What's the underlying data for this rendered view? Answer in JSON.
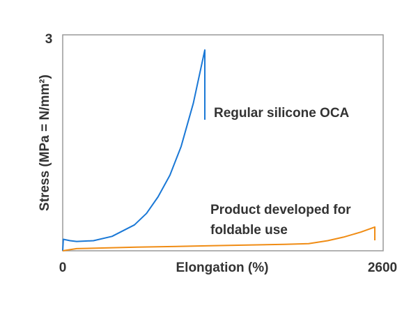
{
  "chart_data": {
    "type": "line",
    "title": "",
    "xlabel": "Elongation (%)",
    "ylabel": "Stress (MPa = N/mm²)",
    "xlim": [
      0,
      2600
    ],
    "ylim": [
      0,
      3
    ],
    "x_tick_labels": [
      "0",
      "2600"
    ],
    "y_tick_labels": [
      "3"
    ],
    "grid": false,
    "colors": {
      "regular": "#1a78d6",
      "product": "#f08c14"
    },
    "series": [
      {
        "name": "Regular silicone OCA",
        "points": [
          [
            0,
            0
          ],
          [
            5,
            0.16
          ],
          [
            60,
            0.14
          ],
          [
            113,
            0.13
          ],
          [
            250,
            0.14
          ],
          [
            400,
            0.2
          ],
          [
            582,
            0.36
          ],
          [
            680,
            0.52
          ],
          [
            774,
            0.75
          ],
          [
            870,
            1.05
          ],
          [
            961,
            1.45
          ],
          [
            1060,
            2.05
          ],
          [
            1153,
            2.79
          ],
          [
            1153,
            1.82
          ]
        ]
      },
      {
        "name": "Product developed for foldable use",
        "points": [
          [
            0,
            0
          ],
          [
            113,
            0.03
          ],
          [
            600,
            0.05
          ],
          [
            1200,
            0.07
          ],
          [
            1800,
            0.09
          ],
          [
            1995,
            0.1
          ],
          [
            2150,
            0.14
          ],
          [
            2278,
            0.19
          ],
          [
            2420,
            0.26
          ],
          [
            2532,
            0.33
          ],
          [
            2532,
            0.145
          ]
        ]
      }
    ],
    "annotations": [
      "Regular silicone OCA",
      "Product developed for",
      "foldable use"
    ]
  }
}
